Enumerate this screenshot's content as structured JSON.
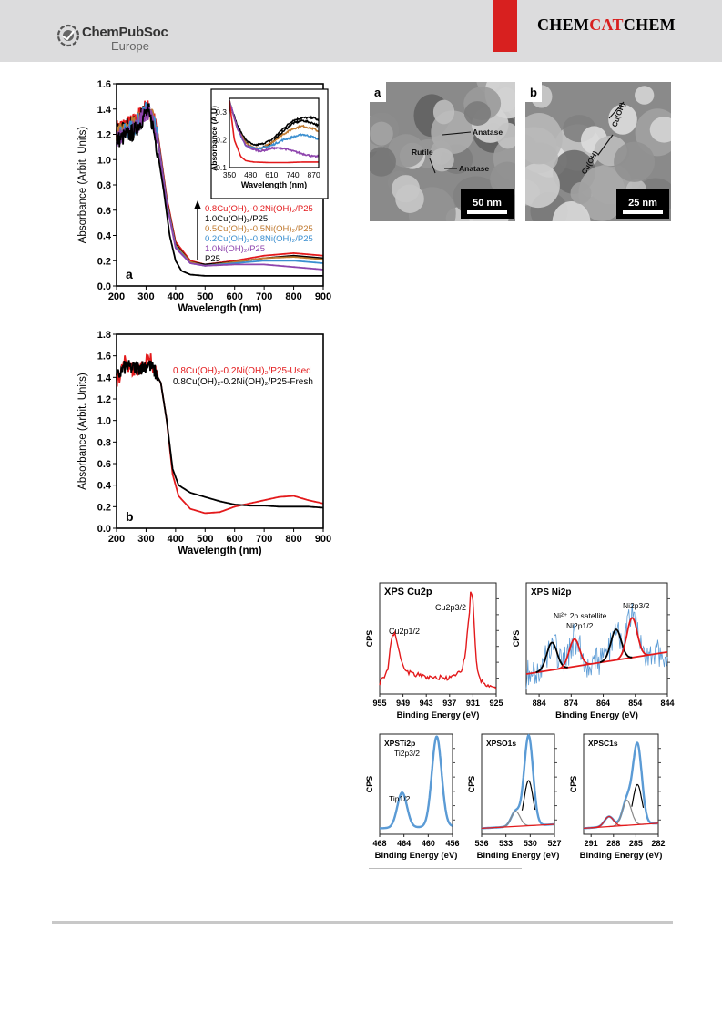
{
  "header": {
    "publisher": "ChemPubSoc",
    "publisher_sub": "Europe",
    "journal_part1": "CHEM",
    "journal_part2": "CAT",
    "journal_part3": "CHEM"
  },
  "colors": {
    "red": "#e31a1c",
    "black": "#000000",
    "brown": "#c07a30",
    "blue": "#3b8fd0",
    "purple": "#8e44ad",
    "xps_blue": "#5b9bd5"
  },
  "tem": [
    {
      "panel": "a",
      "labels": [
        "Anatase",
        "Rutile",
        "Anatase"
      ],
      "scale": "50 nm"
    },
    {
      "panel": "b",
      "labels": [
        "Cu(OH)",
        "Cu(OH)"
      ],
      "scale": "25 nm"
    }
  ],
  "chart_data": [
    {
      "type": "line",
      "panel": "a",
      "xlabel": "Wavelength (nm)",
      "ylabel": "Absorbance (Arbit. Units)",
      "xlim": [
        200,
        900
      ],
      "ylim": [
        0,
        1.6
      ],
      "xticks": [
        "200",
        "300",
        "400",
        "500",
        "600",
        "700",
        "800",
        "900"
      ],
      "yticks": [
        "0.0",
        "0.2",
        "0.4",
        "0.6",
        "0.8",
        "1.0",
        "1.2",
        "1.4",
        "1.6"
      ],
      "legend": [
        "0.8Cu(OH)₂-0.2Ni(OH)₂/P25",
        "1.0Cu(OH)₂/P25",
        "0.5Cu(OH)₂-0.5Ni(OH)₂/P25",
        "0.2Cu(OH)₂-0.8Ni(OH)₂/P25",
        "1.0Ni(OH)₂/P25",
        "P25"
      ],
      "series": [
        {
          "name": "0.8Cu(OH)₂-0.2Ni(OH)₂/P25",
          "x": [
            200,
            260,
            300,
            320,
            340,
            370,
            400,
            450,
            500,
            600,
            700,
            800,
            900
          ],
          "y": [
            1.25,
            1.3,
            1.42,
            1.38,
            1.2,
            0.7,
            0.35,
            0.2,
            0.17,
            0.2,
            0.24,
            0.26,
            0.24
          ]
        },
        {
          "name": "1.0Cu(OH)₂/P25",
          "x": [
            200,
            260,
            300,
            320,
            340,
            370,
            400,
            450,
            500,
            600,
            700,
            800,
            900
          ],
          "y": [
            1.22,
            1.28,
            1.4,
            1.36,
            1.18,
            0.68,
            0.33,
            0.19,
            0.17,
            0.19,
            0.22,
            0.24,
            0.22
          ]
        },
        {
          "name": "0.5Cu(OH)₂-0.5Ni(OH)₂/P25",
          "x": [
            200,
            260,
            300,
            320,
            340,
            370,
            400,
            450,
            500,
            600,
            700,
            800,
            900
          ],
          "y": [
            1.2,
            1.27,
            1.4,
            1.35,
            1.17,
            0.67,
            0.32,
            0.19,
            0.16,
            0.19,
            0.22,
            0.23,
            0.21
          ]
        },
        {
          "name": "0.2Cu(OH)₂-0.8Ni(OH)₂/P25",
          "x": [
            200,
            260,
            300,
            320,
            340,
            370,
            400,
            450,
            500,
            600,
            700,
            800,
            900
          ],
          "y": [
            1.18,
            1.26,
            1.39,
            1.34,
            1.16,
            0.66,
            0.31,
            0.18,
            0.16,
            0.18,
            0.2,
            0.2,
            0.18
          ]
        },
        {
          "name": "1.0Ni(OH)₂/P25",
          "x": [
            200,
            260,
            300,
            320,
            340,
            370,
            400,
            450,
            500,
            600,
            700,
            800,
            900
          ],
          "y": [
            1.16,
            1.24,
            1.38,
            1.33,
            1.15,
            0.65,
            0.3,
            0.18,
            0.16,
            0.17,
            0.17,
            0.15,
            0.13
          ]
        },
        {
          "name": "P25",
          "x": [
            200,
            260,
            300,
            320,
            340,
            360,
            380,
            400,
            420,
            450,
            500,
            600,
            700,
            800,
            900
          ],
          "y": [
            1.15,
            1.22,
            1.37,
            1.3,
            1.05,
            0.75,
            0.4,
            0.2,
            0.12,
            0.09,
            0.08,
            0.08,
            0.08,
            0.08,
            0.08
          ]
        }
      ],
      "inset": {
        "xlabel": "Wavelength (nm)",
        "ylabel": "Absorbance (A.U)",
        "xlim": [
          350,
          900
        ],
        "ylim": [
          0.1,
          0.35
        ],
        "xticks": [
          "350",
          "480",
          "610",
          "740",
          "870"
        ],
        "yticks": [
          "0.1",
          "0.2",
          "0.3"
        ],
        "series": [
          {
            "x": [
              350,
              400,
              450,
              500,
              550,
              610,
              680,
              740,
              800,
              870,
              900
            ],
            "y": [
              0.34,
              0.25,
              0.2,
              0.18,
              0.185,
              0.2,
              0.24,
              0.27,
              0.28,
              0.28,
              0.27
            ]
          },
          {
            "x": [
              350,
              400,
              450,
              500,
              550,
              610,
              680,
              740,
              800,
              870,
              900
            ],
            "y": [
              0.34,
              0.24,
              0.19,
              0.17,
              0.17,
              0.19,
              0.23,
              0.26,
              0.27,
              0.26,
              0.25
            ]
          },
          {
            "x": [
              350,
              400,
              450,
              500,
              550,
              610,
              680,
              740,
              800,
              870,
              900
            ],
            "y": [
              0.34,
              0.24,
              0.19,
              0.17,
              0.17,
              0.19,
              0.22,
              0.24,
              0.25,
              0.24,
              0.23
            ]
          },
          {
            "x": [
              350,
              400,
              450,
              500,
              550,
              610,
              680,
              740,
              800,
              870,
              900
            ],
            "y": [
              0.34,
              0.24,
              0.18,
              0.17,
              0.17,
              0.18,
              0.2,
              0.21,
              0.22,
              0.21,
              0.2
            ]
          },
          {
            "x": [
              350,
              400,
              450,
              500,
              550,
              610,
              680,
              740,
              800,
              870,
              900
            ],
            "y": [
              0.34,
              0.24,
              0.18,
              0.165,
              0.16,
              0.17,
              0.17,
              0.16,
              0.15,
              0.14,
              0.14
            ]
          },
          {
            "x": [
              350,
              380,
              420,
              450,
              500,
              600,
              700,
              800,
              870,
              900
            ],
            "y": [
              0.34,
              0.2,
              0.14,
              0.125,
              0.12,
              0.118,
              0.118,
              0.12,
              0.12,
              0.12
            ]
          }
        ]
      }
    },
    {
      "type": "line",
      "panel": "b",
      "xlabel": "Wavelength (nm)",
      "ylabel": "Absorbance (Arbit. Units)",
      "xlim": [
        200,
        900
      ],
      "ylim": [
        0,
        1.8
      ],
      "xticks": [
        "200",
        "300",
        "400",
        "500",
        "600",
        "700",
        "800",
        "900"
      ],
      "yticks": [
        "0.0",
        "0.2",
        "0.4",
        "0.6",
        "0.8",
        "1.0",
        "1.2",
        "1.4",
        "1.6",
        "1.8"
      ],
      "legend": [
        "0.8Cu(OH)₂-0.2Ni(OH)₂/P25-Used",
        "0.8Cu(OH)₂-0.2Ni(OH)₂/P25-Fresh"
      ],
      "series": [
        {
          "name": "0.8Cu(OH)₂-0.2Ni(OH)₂/P25-Used",
          "x": [
            200,
            230,
            260,
            290,
            310,
            330,
            350,
            370,
            390,
            410,
            450,
            500,
            550,
            600,
            650,
            700,
            750,
            800,
            850,
            900
          ],
          "y": [
            1.35,
            1.55,
            1.45,
            1.5,
            1.6,
            1.45,
            1.35,
            1.0,
            0.5,
            0.3,
            0.18,
            0.14,
            0.15,
            0.2,
            0.23,
            0.26,
            0.29,
            0.3,
            0.26,
            0.23
          ]
        },
        {
          "name": "0.8Cu(OH)₂-0.2Ni(OH)₂/P25-Fresh",
          "x": [
            200,
            230,
            260,
            290,
            310,
            330,
            350,
            370,
            390,
            410,
            450,
            500,
            550,
            600,
            650,
            700,
            750,
            800,
            850,
            900
          ],
          "y": [
            1.4,
            1.5,
            1.48,
            1.5,
            1.52,
            1.45,
            1.35,
            1.0,
            0.55,
            0.4,
            0.33,
            0.29,
            0.25,
            0.22,
            0.21,
            0.21,
            0.2,
            0.2,
            0.2,
            0.19
          ]
        }
      ]
    },
    {
      "type": "line",
      "title": "XPS Cu2p",
      "xlabel": "Binding Energy (eV)",
      "ylabel": "CPS",
      "xlim": [
        955,
        925
      ],
      "xticks": [
        "955",
        "949",
        "943",
        "937",
        "931",
        "925"
      ],
      "peak_labels": [
        "Cu2p1/2",
        "Cu2p3/2"
      ],
      "series": [
        {
          "x": [
            955,
            953,
            952,
            951,
            950,
            949,
            948,
            946,
            943,
            940,
            937,
            934,
            933,
            932,
            931.5,
            931,
            930.5,
            930,
            929,
            928,
            925
          ],
          "y": [
            0.1,
            0.2,
            0.5,
            0.55,
            0.4,
            0.25,
            0.2,
            0.18,
            0.15,
            0.15,
            0.14,
            0.2,
            0.35,
            0.7,
            0.95,
            0.85,
            0.5,
            0.25,
            0.12,
            0.08,
            0.05
          ]
        }
      ]
    },
    {
      "type": "line",
      "title": "XPS Ni2p",
      "xlabel": "Binding Energy (eV)",
      "ylabel": "CPS",
      "xlim": [
        888,
        844
      ],
      "xticks": [
        "884",
        "874",
        "864",
        "854",
        "844"
      ],
      "peak_labels": [
        "Ni²⁺ 2p satellite",
        "Ni2p1/2",
        "Ni2p3/2"
      ],
      "series": [
        {
          "name": "fit peaks",
          "centers": [
            880,
            873,
            860,
            855
          ],
          "heights": [
            0.45,
            0.45,
            0.5,
            0.65
          ]
        }
      ]
    },
    {
      "type": "line",
      "title": "XPSTi2p",
      "xlabel": "Binding Energy (eV)",
      "ylabel": "CPS",
      "xlim": [
        468,
        456
      ],
      "xticks": [
        "468",
        "464",
        "460",
        "456"
      ],
      "peak_labels": [
        "Tip1/2",
        "Ti2p3/2"
      ],
      "series": [
        {
          "centers": [
            464.3,
            458.6
          ],
          "heights": [
            0.35,
            0.9
          ]
        }
      ]
    },
    {
      "type": "line",
      "title": "XPSO1s",
      "xlabel": "Binding Energy (eV)",
      "ylabel": "CPS",
      "xlim": [
        536,
        527
      ],
      "xticks": [
        "536",
        "533",
        "530",
        "527"
      ],
      "series": [
        {
          "centers": [
            530.2,
            531.8
          ],
          "heights": [
            0.9,
            0.15
          ]
        }
      ]
    },
    {
      "type": "line",
      "title": "XPSC1s",
      "xlabel": "Binding Energy (eV)",
      "ylabel": "CPS",
      "xlim": [
        292,
        282
      ],
      "xticks": [
        "291",
        "288",
        "285",
        "282"
      ],
      "series": [
        {
          "centers": [
            284.8,
            286.2,
            288.6
          ],
          "heights": [
            0.8,
            0.25,
            0.1
          ]
        }
      ]
    }
  ]
}
